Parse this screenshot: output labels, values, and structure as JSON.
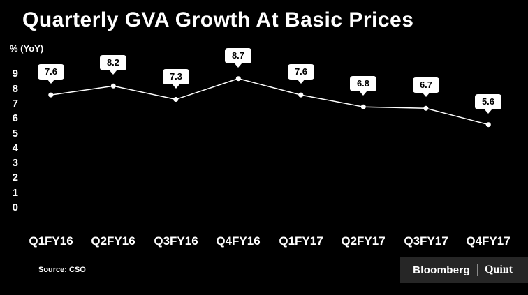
{
  "title": "Quarterly GVA Growth At Basic Prices",
  "y_axis_unit": "% (YoY)",
  "source": "Source: CSO",
  "branding": {
    "primary": "Bloomberg",
    "secondary": "Quint"
  },
  "colors": {
    "background": "#000000",
    "line": "#ffffff",
    "point": "#ffffff",
    "callout_bg": "#ffffff",
    "callout_text": "#000000",
    "text": "#ffffff"
  },
  "chart_data": {
    "type": "line",
    "categories": [
      "Q1FY16",
      "Q2FY16",
      "Q3FY16",
      "Q4FY16",
      "Q1FY17",
      "Q2FY17",
      "Q3FY17",
      "Q4FY17"
    ],
    "values": [
      7.6,
      8.2,
      7.3,
      8.7,
      7.6,
      6.8,
      6.7,
      5.6
    ],
    "title": "Quarterly GVA Growth At Basic Prices",
    "xlabel": "",
    "ylabel": "% (YoY)",
    "ylim": [
      0,
      9
    ],
    "yticks": [
      0,
      1,
      2,
      3,
      4,
      5,
      6,
      7,
      8,
      9
    ],
    "grid": false,
    "legend": "none",
    "data_labels": true
  }
}
